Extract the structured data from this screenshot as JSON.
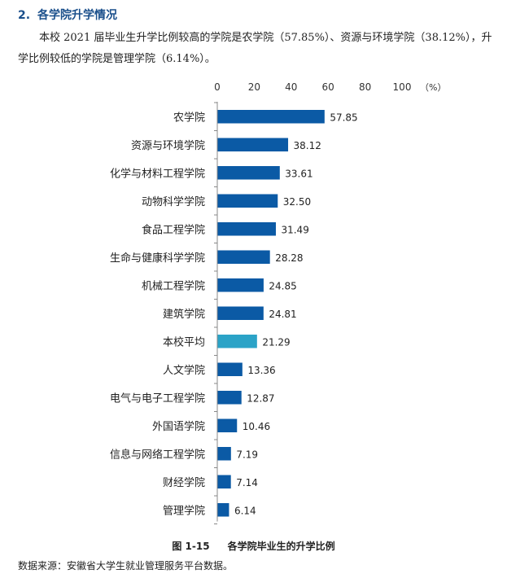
{
  "section": {
    "number": "2.",
    "title": "各学院升学情况"
  },
  "paragraph": "本校 2021 届毕业生升学比例较高的学院是农学院（57.85%）、资源与环境学院（38.12%），升学比例较低的学院是管理学院（6.14%）。",
  "chart_data": {
    "type": "bar",
    "orientation": "horizontal",
    "unit_label": "（%）",
    "xlim": [
      0,
      100
    ],
    "ticks": [
      0,
      20,
      40,
      60,
      80,
      100
    ],
    "categories": [
      "农学院",
      "资源与环境学院",
      "化学与材料工程学院",
      "动物科学学院",
      "食品工程学院",
      "生命与健康科学学院",
      "机械工程学院",
      "建筑学院",
      "本校平均",
      "人文学院",
      "电气与电子工程学院",
      "外国语学院",
      "信息与网络工程学院",
      "财经学院",
      "管理学院"
    ],
    "values": [
      57.85,
      38.12,
      33.61,
      32.5,
      31.49,
      28.28,
      24.85,
      24.81,
      21.29,
      13.36,
      12.87,
      10.46,
      7.19,
      7.14,
      6.14
    ],
    "value_labels": [
      "57.85",
      "38.12",
      "33.61",
      "32.50",
      "31.49",
      "28.28",
      "24.85",
      "24.81",
      "21.29",
      "13.36",
      "12.87",
      "10.46",
      "7.19",
      "7.14",
      "6.14"
    ],
    "highlight_category": "本校平均",
    "bar_color": "#0b5aa5",
    "highlight_color": "#2ba3c7",
    "legend": "none",
    "grid": false
  },
  "caption": {
    "figure_number": "图 1-15",
    "text": "各学院毕业生的升学比例"
  },
  "source": "数据来源：安徽省大学生就业管理服务平台数据。"
}
